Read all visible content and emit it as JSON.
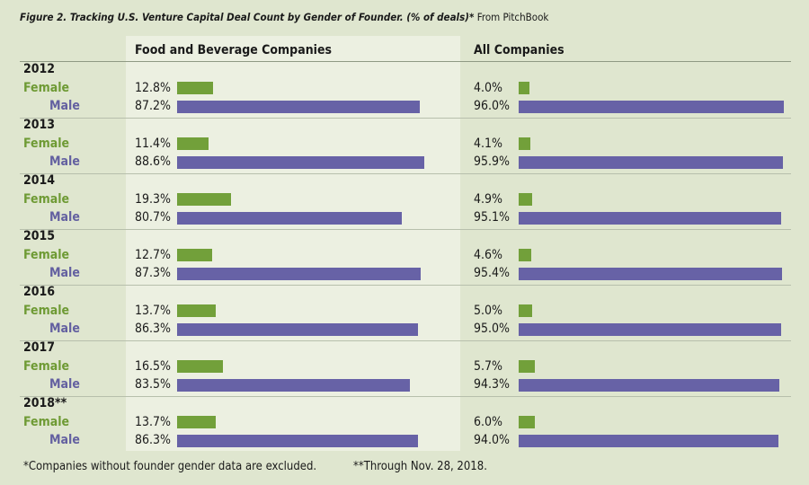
{
  "figure": {
    "title": "Figure 2. Tracking U.S. Venture Capital Deal Count by Gender of Founder. (% of deals)*",
    "source": "From PitchBook"
  },
  "footnotes": {
    "left": "*Companies without founder gender data are excluded.",
    "right": "**Through Nov. 28, 2018."
  },
  "colors": {
    "female": "#72a03a",
    "male": "#6762a6",
    "female_label": "#6e9a34",
    "male_label": "#6360a0",
    "background": "#dfe6cf",
    "panel": "#ecf0e1"
  },
  "chart_data": {
    "type": "bar",
    "orientation": "horizontal",
    "unit": "%",
    "xlim": [
      0,
      100
    ],
    "grid": false,
    "panels": [
      {
        "title": "Food and Beverage Companies"
      },
      {
        "title": "All Companies"
      }
    ],
    "series_names": [
      "Female",
      "Male"
    ],
    "rows": [
      {
        "year": "2012",
        "food": {
          "female": "12.8%",
          "male": "87.2%"
        },
        "all": {
          "female": "4.0%",
          "male": "96.0%"
        }
      },
      {
        "year": "2013",
        "food": {
          "female": "11.4%",
          "male": "88.6%"
        },
        "all": {
          "female": "4.1%",
          "male": "95.9%"
        }
      },
      {
        "year": "2014",
        "food": {
          "female": "19.3%",
          "male": "80.7%"
        },
        "all": {
          "female": "4.9%",
          "male": "95.1%"
        }
      },
      {
        "year": "2015",
        "food": {
          "female": "12.7%",
          "male": "87.3%"
        },
        "all": {
          "female": "4.6%",
          "male": "95.4%"
        }
      },
      {
        "year": "2016",
        "food": {
          "female": "13.7%",
          "male": "86.3%"
        },
        "all": {
          "female": "5.0%",
          "male": "95.0%"
        }
      },
      {
        "year": "2017",
        "food": {
          "female": "16.5%",
          "male": "83.5%"
        },
        "all": {
          "female": "5.7%",
          "male": "94.3%"
        }
      },
      {
        "year": "2018**",
        "food": {
          "female": "13.7%",
          "male": "86.3%"
        },
        "all": {
          "female": "6.0%",
          "male": "94.0%"
        }
      }
    ]
  }
}
